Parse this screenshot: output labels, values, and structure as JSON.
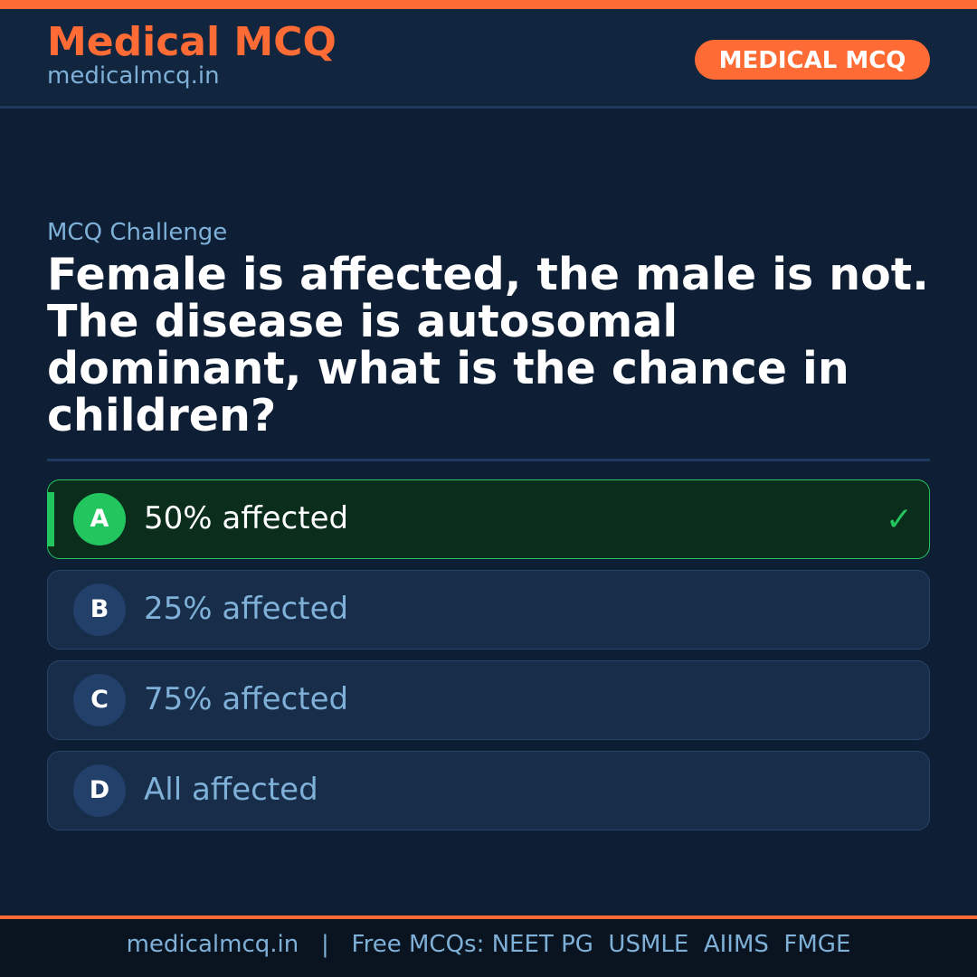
{
  "header": {
    "brand": "Medical MCQ",
    "site": "medicalmcq.in",
    "badge": "MEDICAL MCQ"
  },
  "main": {
    "label": "MCQ Challenge",
    "question": "Female is affected, the male is not. The disease is autosomal dominant, what is the chance in children?",
    "options": [
      {
        "letter": "A",
        "text": "50% affected",
        "correct": true
      },
      {
        "letter": "B",
        "text": "25% affected"
      },
      {
        "letter": "C",
        "text": "75% affected"
      },
      {
        "letter": "D",
        "text": "All affected"
      }
    ],
    "check_icon": "✓"
  },
  "footer": {
    "text": "medicalmcq.in   |   Free MCQs: NEET PG  USMLE  AIIMS  FMGE"
  },
  "colors": {
    "accent": "#ff6b35",
    "correct": "#22c55e",
    "background": "#0e1f35"
  }
}
